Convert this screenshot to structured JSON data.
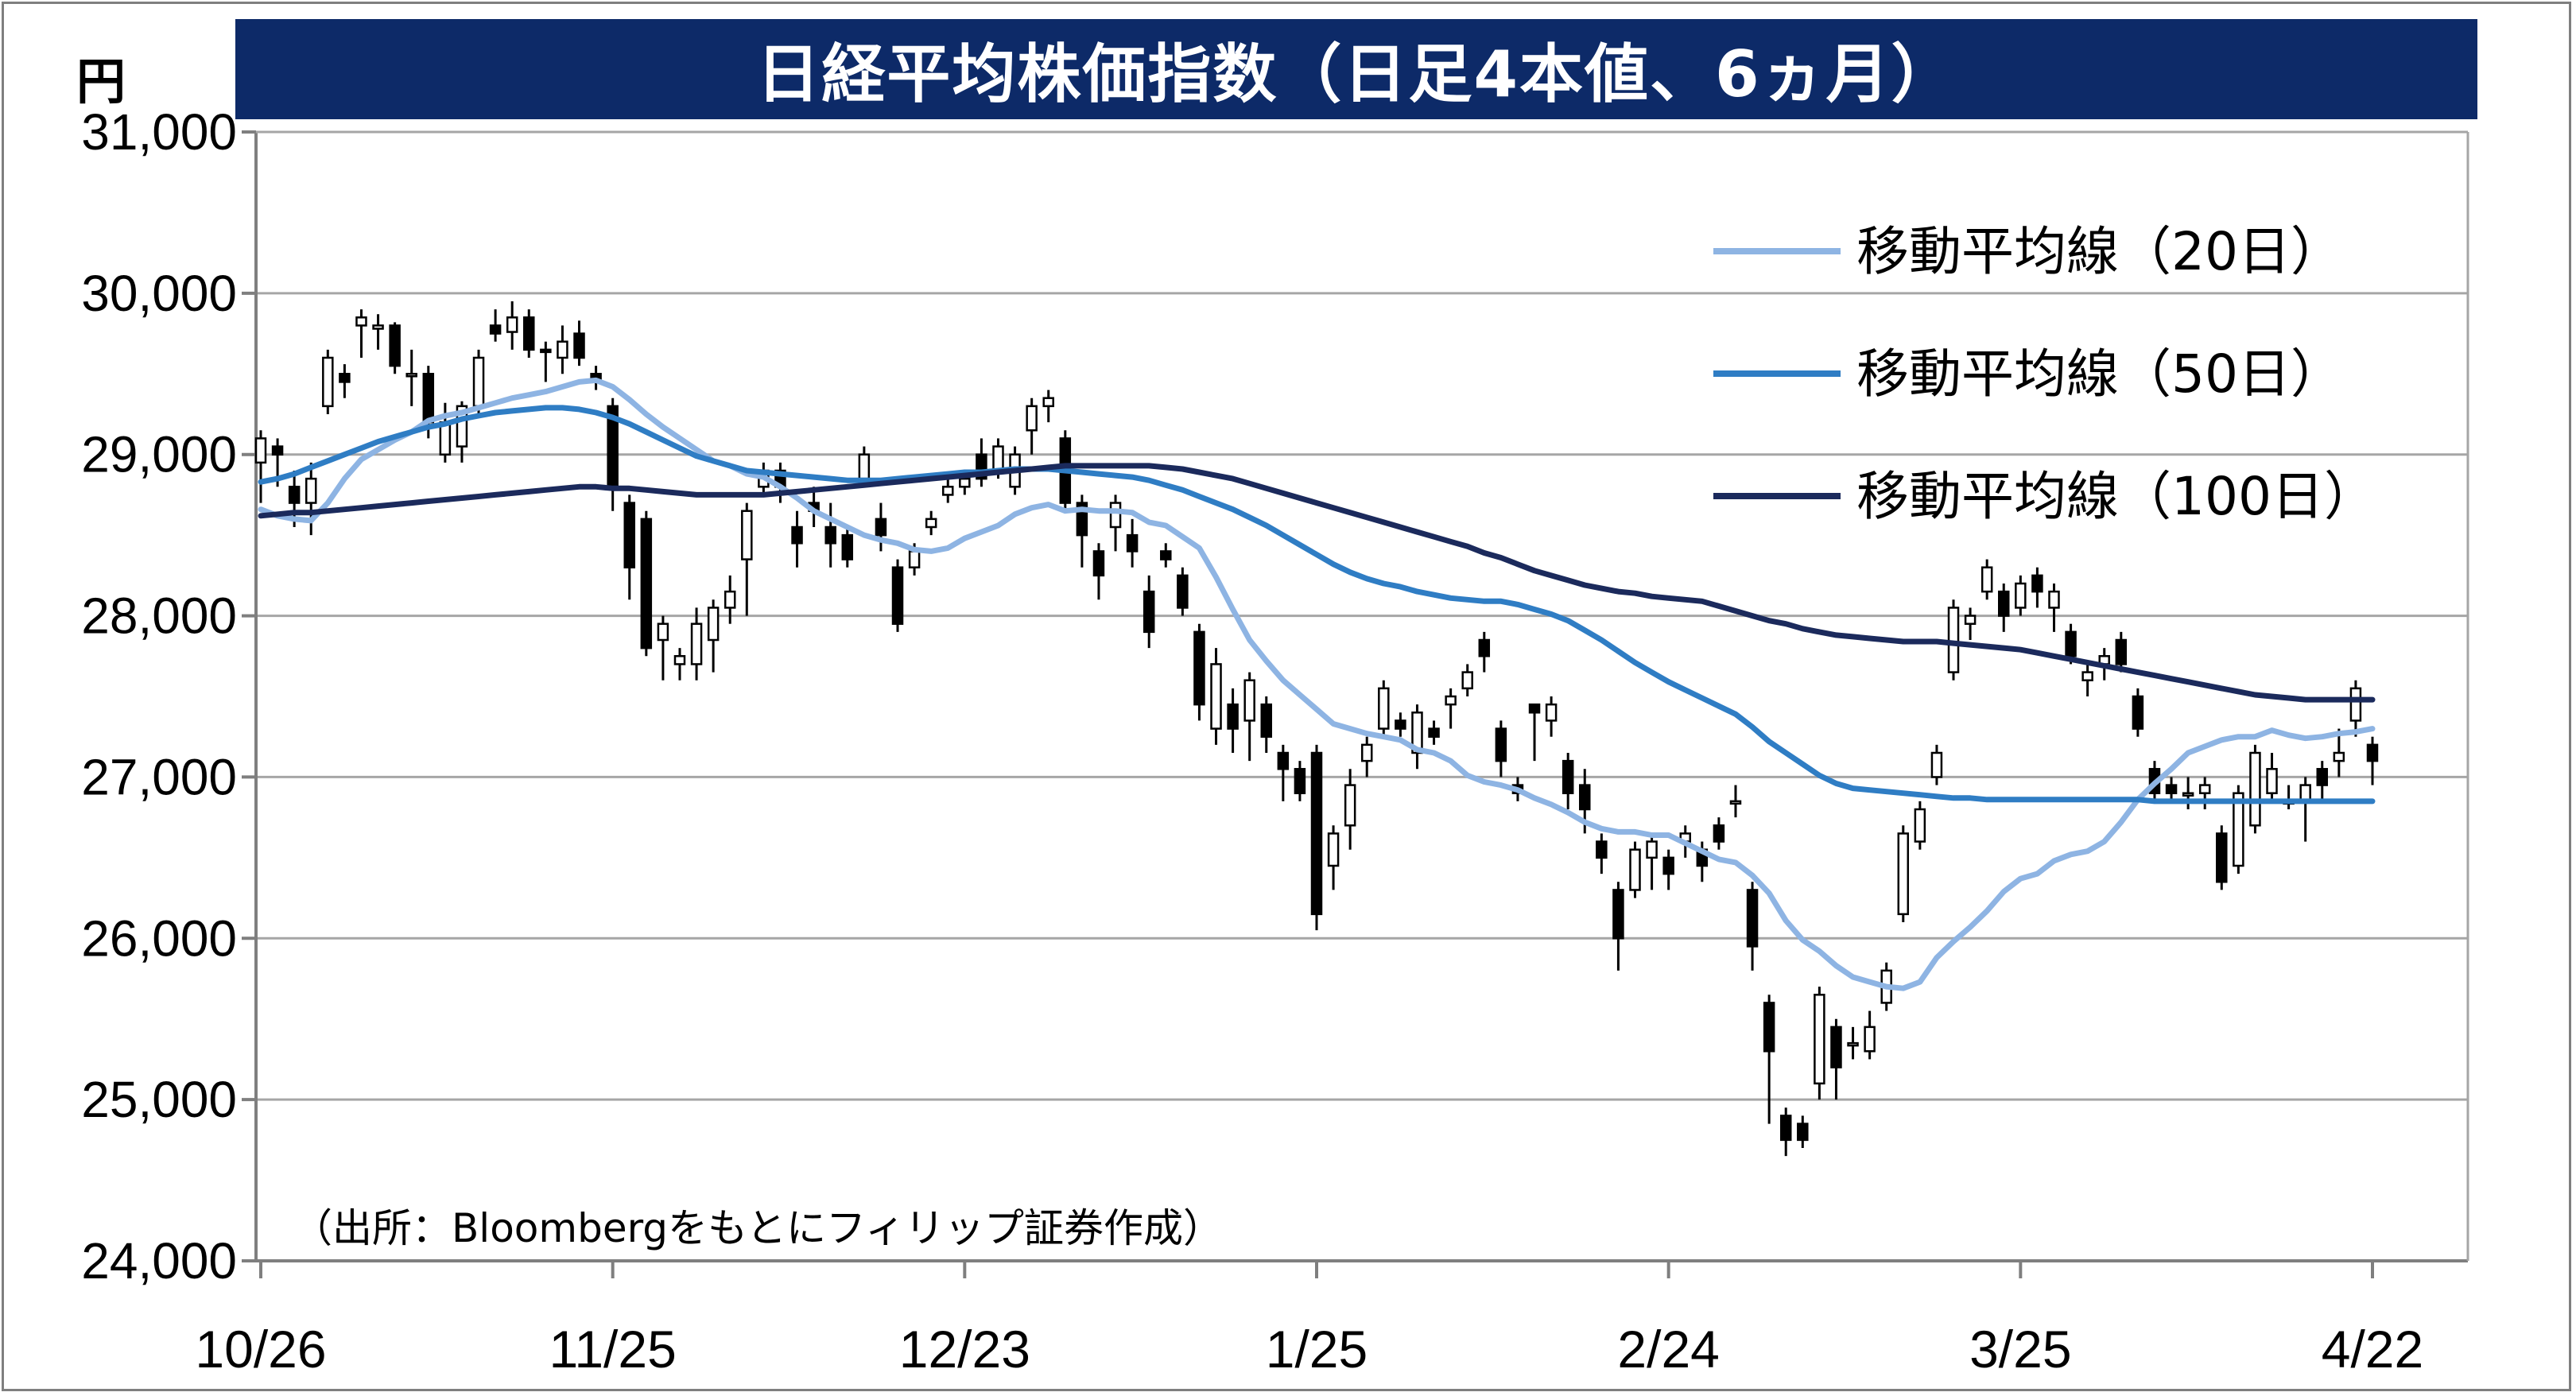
{
  "chart_data": {
    "type": "candlestick",
    "title": "日経平均株価指数（日足4本値、6ヵ月）",
    "ylabel": "円",
    "ylim": [
      24000,
      31000
    ],
    "yticks": [
      "31,000",
      "30,000",
      "29,000",
      "28,000",
      "27,000",
      "26,000",
      "25,000",
      "24,000"
    ],
    "ytick_values": [
      31000,
      30000,
      29000,
      28000,
      27000,
      26000,
      25000,
      24000
    ],
    "xticks": [
      "10/26",
      "11/25",
      "12/23",
      "1/25",
      "2/24",
      "3/25",
      "4/22"
    ],
    "grid": true,
    "legend_position": "top-right",
    "note": "（出所：Bloombergをもとにフィリップ証券作成）",
    "candles": [
      [
        28950,
        29100,
        28700,
        29150
      ],
      [
        29050,
        29000,
        28800,
        29100
      ],
      [
        28800,
        28700,
        28550,
        28900
      ],
      [
        28700,
        28850,
        28500,
        28950
      ],
      [
        29300,
        29600,
        29250,
        29650
      ],
      [
        29500,
        29450,
        29350,
        29560
      ],
      [
        29800,
        29850,
        29600,
        29900
      ],
      [
        29780,
        29800,
        29650,
        29870
      ],
      [
        29800,
        29550,
        29500,
        29820
      ],
      [
        29500,
        29500,
        29300,
        29650
      ],
      [
        29500,
        29200,
        29100,
        29550
      ],
      [
        29000,
        29200,
        28950,
        29320
      ],
      [
        29050,
        29300,
        28950,
        29330
      ],
      [
        29300,
        29600,
        29250,
        29650
      ],
      [
        29800,
        29750,
        29700,
        29900
      ],
      [
        29760,
        29850,
        29650,
        29950
      ],
      [
        29850,
        29650,
        29600,
        29900
      ],
      [
        29650,
        29640,
        29450,
        29700
      ],
      [
        29600,
        29700,
        29500,
        29800
      ],
      [
        29750,
        29600,
        29550,
        29830
      ],
      [
        29500,
        29450,
        29400,
        29550
      ],
      [
        29300,
        28800,
        28650,
        29350
      ],
      [
        28700,
        28300,
        28100,
        28750
      ],
      [
        28600,
        27800,
        27750,
        28650
      ],
      [
        27850,
        27950,
        27600,
        28000
      ],
      [
        27700,
        27750,
        27600,
        27800
      ],
      [
        27700,
        27950,
        27600,
        28050
      ],
      [
        27850,
        28050,
        27650,
        28100
      ],
      [
        28050,
        28150,
        27950,
        28250
      ],
      [
        28350,
        28650,
        28000,
        28700
      ],
      [
        28800,
        28900,
        28750,
        28950
      ],
      [
        28900,
        28800,
        28700,
        28950
      ],
      [
        28550,
        28450,
        28300,
        28650
      ],
      [
        28700,
        28650,
        28550,
        28800
      ],
      [
        28550,
        28450,
        28300,
        28700
      ],
      [
        28500,
        28350,
        28300,
        28550
      ],
      [
        28850,
        29000,
        28800,
        29050
      ],
      [
        28600,
        28500,
        28400,
        28700
      ],
      [
        28300,
        27950,
        27900,
        28350
      ],
      [
        28300,
        28400,
        28250,
        28450
      ],
      [
        28550,
        28600,
        28500,
        28650
      ],
      [
        28750,
        28800,
        28700,
        28850
      ],
      [
        28800,
        28850,
        28750,
        28900
      ],
      [
        29000,
        28850,
        28800,
        29100
      ],
      [
        28900,
        29050,
        28850,
        29100
      ],
      [
        28800,
        29000,
        28750,
        29050
      ],
      [
        29150,
        29300,
        29000,
        29350
      ],
      [
        29300,
        29350,
        29200,
        29400
      ],
      [
        29100,
        28700,
        28650,
        29150
      ],
      [
        28700,
        28500,
        28300,
        28750
      ],
      [
        28400,
        28250,
        28100,
        28450
      ],
      [
        28550,
        28700,
        28400,
        28750
      ],
      [
        28500,
        28400,
        28300,
        28600
      ],
      [
        28150,
        27900,
        27800,
        28250
      ],
      [
        28400,
        28350,
        28300,
        28450
      ],
      [
        28250,
        28050,
        28000,
        28300
      ],
      [
        27900,
        27450,
        27350,
        27950
      ],
      [
        27300,
        27700,
        27200,
        27800
      ],
      [
        27450,
        27300,
        27150,
        27550
      ],
      [
        27350,
        27600,
        27100,
        27650
      ],
      [
        27450,
        27250,
        27150,
        27500
      ],
      [
        27150,
        27050,
        26850,
        27200
      ],
      [
        27050,
        26900,
        26850,
        27100
      ],
      [
        27150,
        26150,
        26050,
        27200
      ],
      [
        26450,
        26650,
        26300,
        26700
      ],
      [
        26700,
        26950,
        26550,
        27050
      ],
      [
        27100,
        27200,
        27000,
        27250
      ],
      [
        27300,
        27550,
        27250,
        27600
      ],
      [
        27350,
        27300,
        27250,
        27400
      ],
      [
        27150,
        27400,
        27050,
        27450
      ],
      [
        27300,
        27250,
        27200,
        27350
      ],
      [
        27450,
        27500,
        27300,
        27550
      ],
      [
        27550,
        27650,
        27500,
        27700
      ],
      [
        27850,
        27750,
        27650,
        27900
      ],
      [
        27300,
        27100,
        27000,
        27350
      ],
      [
        26950,
        26900,
        26850,
        27000
      ],
      [
        27450,
        27400,
        27100,
        27450
      ],
      [
        27350,
        27450,
        27250,
        27500
      ],
      [
        27100,
        26900,
        26800,
        27150
      ],
      [
        26950,
        26800,
        26650,
        27050
      ],
      [
        26600,
        26500,
        26400,
        26650
      ],
      [
        26300,
        26000,
        25800,
        26350
      ],
      [
        26300,
        26550,
        26250,
        26600
      ],
      [
        26500,
        26600,
        26300,
        26650
      ],
      [
        26500,
        26400,
        26300,
        26550
      ],
      [
        26600,
        26650,
        26500,
        26700
      ],
      [
        26550,
        26450,
        26350,
        26600
      ],
      [
        26700,
        26600,
        26550,
        26750
      ],
      [
        26850,
        26850,
        26750,
        26950
      ],
      [
        26300,
        25950,
        25800,
        26350
      ],
      [
        25600,
        25300,
        24850,
        25650
      ],
      [
        24900,
        24750,
        24650,
        24950
      ],
      [
        24850,
        24750,
        24700,
        24900
      ],
      [
        25100,
        25650,
        25000,
        25700
      ],
      [
        25450,
        25200,
        25000,
        25500
      ],
      [
        25350,
        25350,
        25250,
        25450
      ],
      [
        25300,
        25450,
        25250,
        25550
      ],
      [
        25600,
        25800,
        25550,
        25850
      ],
      [
        26150,
        26650,
        26100,
        26700
      ],
      [
        26600,
        26800,
        26550,
        26850
      ],
      [
        27000,
        27150,
        26950,
        27200
      ],
      [
        27650,
        28050,
        27600,
        28100
      ],
      [
        27950,
        28000,
        27850,
        28050
      ],
      [
        28150,
        28300,
        28100,
        28350
      ],
      [
        28150,
        28000,
        27900,
        28200
      ],
      [
        28050,
        28200,
        28000,
        28250
      ],
      [
        28250,
        28150,
        28050,
        28300
      ],
      [
        28050,
        28150,
        27900,
        28200
      ],
      [
        27900,
        27750,
        27700,
        27950
      ],
      [
        27600,
        27650,
        27500,
        27700
      ],
      [
        27700,
        27750,
        27600,
        27800
      ],
      [
        27850,
        27700,
        27650,
        27900
      ],
      [
        27500,
        27300,
        27250,
        27550
      ],
      [
        27050,
        26900,
        26850,
        27100
      ],
      [
        26950,
        26900,
        26850,
        27000
      ],
      [
        26900,
        26900,
        26800,
        27000
      ],
      [
        26900,
        26950,
        26800,
        27000
      ],
      [
        26650,
        26350,
        26300,
        26700
      ],
      [
        26450,
        26900,
        26400,
        26950
      ],
      [
        26700,
        27150,
        26650,
        27200
      ],
      [
        26900,
        27050,
        26850,
        27150
      ],
      [
        26850,
        26850,
        26800,
        26950
      ],
      [
        26850,
        26950,
        26600,
        27000
      ],
      [
        27050,
        26950,
        26850,
        27100
      ],
      [
        27100,
        27150,
        27000,
        27300
      ],
      [
        27350,
        27550,
        27250,
        27600
      ],
      [
        27200,
        27100,
        26950,
        27250
      ]
    ],
    "series": [
      {
        "name": "移動平均線（20日）",
        "color": "#8eb4e3",
        "values": [
          28660,
          28620,
          28600,
          28590,
          28700,
          28850,
          28970,
          29030,
          29090,
          29140,
          29210,
          29240,
          29260,
          29290,
          29320,
          29350,
          29370,
          29390,
          29420,
          29450,
          29460,
          29420,
          29340,
          29250,
          29170,
          29100,
          29030,
          28960,
          28930,
          28880,
          28860,
          28800,
          28730,
          28650,
          28600,
          28550,
          28500,
          28470,
          28450,
          28410,
          28400,
          28420,
          28480,
          28520,
          28560,
          28630,
          28670,
          28690,
          28650,
          28660,
          28650,
          28650,
          28640,
          28580,
          28560,
          28490,
          28420,
          28240,
          28040,
          27850,
          27720,
          27600,
          27510,
          27420,
          27330,
          27300,
          27270,
          27250,
          27230,
          27170,
          27150,
          27100,
          27010,
          26970,
          26950,
          26920,
          26870,
          26830,
          26780,
          26720,
          26680,
          26660,
          26660,
          26640,
          26640,
          26590,
          26540,
          26490,
          26470,
          26390,
          26280,
          26110,
          25990,
          25920,
          25830,
          25760,
          25730,
          25700,
          25690,
          25730,
          25880,
          25980,
          26070,
          26170,
          26290,
          26370,
          26400,
          26480,
          26520,
          26540,
          26600,
          26720,
          26860,
          26960,
          27050,
          27150,
          27190,
          27230,
          27250,
          27250,
          27290,
          27260,
          27240,
          27250,
          27270,
          27280,
          27300
        ]
      },
      {
        "name": "移動平均線（50日）",
        "color": "#2f7dc4",
        "values": [
          28830,
          28850,
          28880,
          28920,
          28960,
          29000,
          29040,
          29080,
          29110,
          29140,
          29170,
          29190,
          29220,
          29240,
          29260,
          29270,
          29280,
          29290,
          29290,
          29280,
          29260,
          29230,
          29190,
          29140,
          29090,
          29040,
          28990,
          28960,
          28930,
          28900,
          28890,
          28880,
          28870,
          28860,
          28850,
          28840,
          28840,
          28840,
          28850,
          28860,
          28870,
          28880,
          28890,
          28890,
          28900,
          28910,
          28910,
          28910,
          28900,
          28890,
          28880,
          28870,
          28860,
          28840,
          28810,
          28780,
          28740,
          28700,
          28660,
          28610,
          28560,
          28500,
          28440,
          28380,
          28320,
          28270,
          28230,
          28200,
          28180,
          28150,
          28130,
          28110,
          28100,
          28090,
          28090,
          28070,
          28040,
          28010,
          27970,
          27910,
          27850,
          27780,
          27710,
          27650,
          27590,
          27540,
          27490,
          27440,
          27390,
          27310,
          27220,
          27150,
          27080,
          27010,
          26960,
          26930,
          26920,
          26910,
          26900,
          26890,
          26880,
          26870,
          26870,
          26860,
          26860,
          26860,
          26860,
          26860,
          26860,
          26860,
          26860,
          26860,
          26860,
          26850,
          26850,
          26850,
          26850,
          26850,
          26850,
          26850,
          26850,
          26850,
          26850,
          26850,
          26850,
          26850,
          26850
        ]
      },
      {
        "name": "移動平均線（100日）",
        "color": "#1b2a5c",
        "values": [
          28620,
          28630,
          28640,
          28640,
          28650,
          28660,
          28670,
          28680,
          28690,
          28700,
          28710,
          28720,
          28730,
          28740,
          28750,
          28760,
          28770,
          28780,
          28790,
          28800,
          28800,
          28790,
          28790,
          28780,
          28770,
          28760,
          28750,
          28750,
          28750,
          28750,
          28750,
          28760,
          28770,
          28780,
          28790,
          28800,
          28810,
          28820,
          28830,
          28840,
          28850,
          28860,
          28870,
          28880,
          28890,
          28900,
          28910,
          28920,
          28930,
          28930,
          28930,
          28930,
          28930,
          28930,
          28920,
          28910,
          28890,
          28870,
          28850,
          28820,
          28790,
          28760,
          28730,
          28700,
          28670,
          28640,
          28610,
          28580,
          28550,
          28520,
          28490,
          28460,
          28430,
          28390,
          28360,
          28320,
          28280,
          28250,
          28220,
          28190,
          28170,
          28150,
          28140,
          28120,
          28110,
          28100,
          28090,
          28060,
          28030,
          28000,
          27970,
          27950,
          27920,
          27900,
          27880,
          27870,
          27860,
          27850,
          27840,
          27840,
          27840,
          27830,
          27820,
          27810,
          27800,
          27790,
          27770,
          27750,
          27730,
          27710,
          27690,
          27670,
          27650,
          27630,
          27610,
          27590,
          27570,
          27550,
          27530,
          27510,
          27500,
          27490,
          27480,
          27480,
          27480,
          27480,
          27480
        ]
      }
    ]
  },
  "colors": {
    "title_bg": "#0d2a68",
    "title_fg": "#ffffff",
    "grid": "#a6a6a6",
    "axis": "#7f7f7f",
    "candle_up_fill": "#ffffff",
    "candle_down_fill": "#000000"
  }
}
